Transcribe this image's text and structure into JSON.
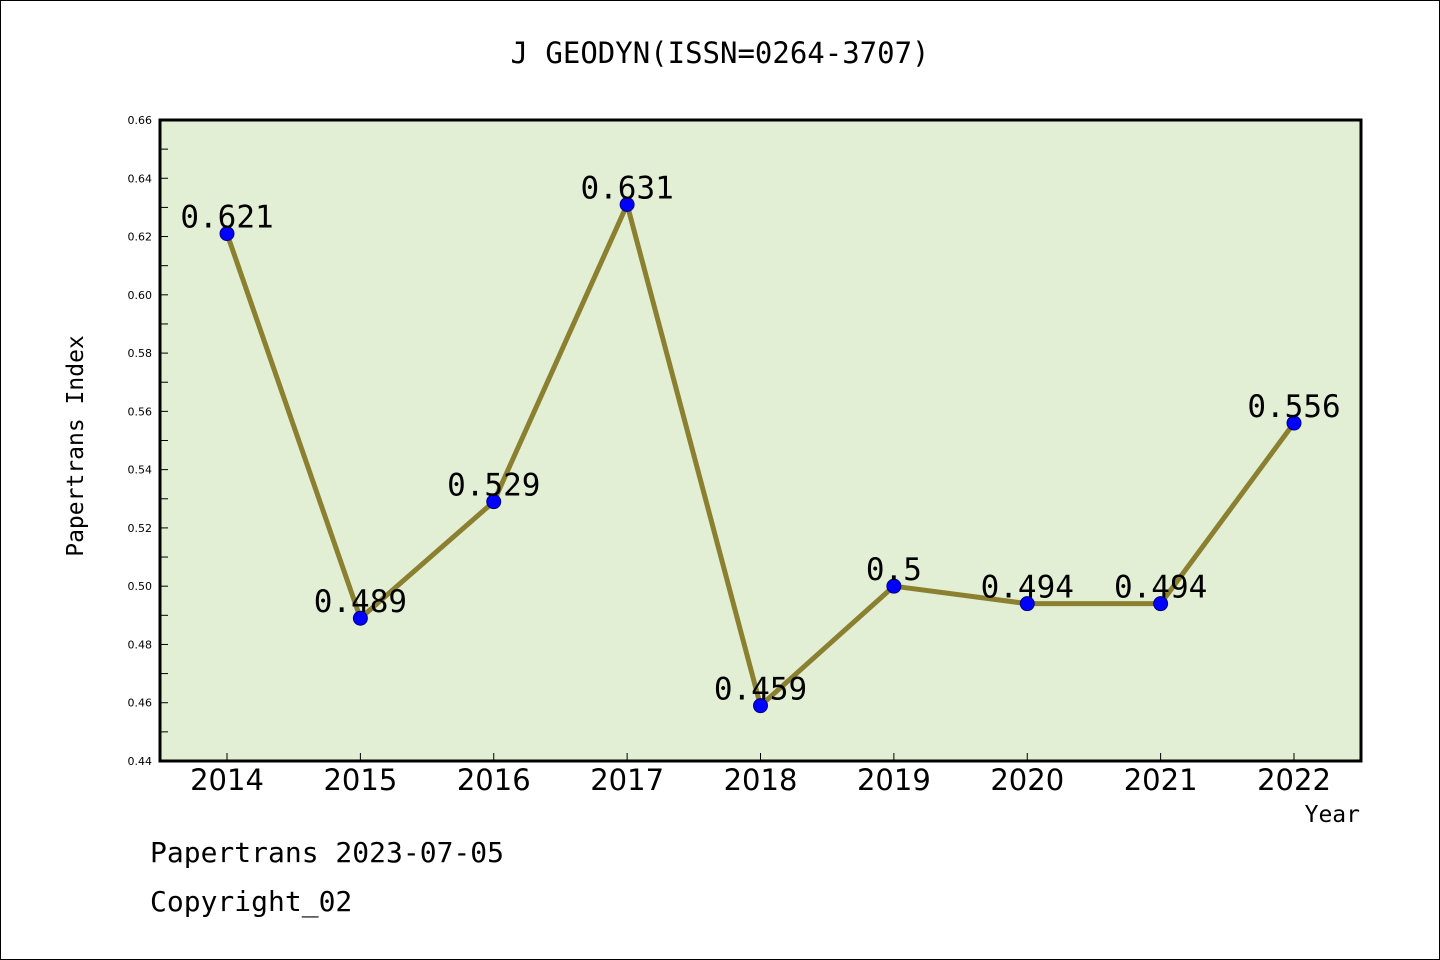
{
  "chart_data": {
    "type": "line",
    "title": "J GEODYN(ISSN=0264-3707)",
    "xlabel": "Year",
    "ylabel": "Papertrans Index",
    "categories": [
      "2014",
      "2015",
      "2016",
      "2017",
      "2018",
      "2019",
      "2020",
      "2021",
      "2022"
    ],
    "series": [
      {
        "values": [
          0.621,
          0.489,
          0.529,
          0.631,
          0.459,
          0.5,
          0.494,
          0.494,
          0.556
        ],
        "labels": [
          "0.621",
          "0.489",
          "0.529",
          "0.631",
          "0.459",
          "0.5",
          "0.494",
          "0.494",
          "0.556"
        ],
        "line_color": "#8b8030",
        "marker_color": "#0000ff"
      }
    ],
    "ylim": [
      0.44,
      0.66
    ],
    "yticks": [
      "0.44",
      "0.46",
      "0.48",
      "0.50",
      "0.52",
      "0.54",
      "0.56",
      "0.58",
      "0.60",
      "0.62",
      "0.64",
      "0.66"
    ],
    "plot_background": "#e2efd5",
    "grid": false,
    "legend": "none"
  },
  "footer": {
    "line1": "Papertrans 2023-07-05",
    "line2": "Copyright_02"
  }
}
